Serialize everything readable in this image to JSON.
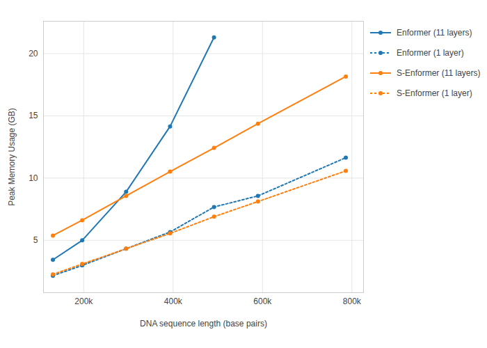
{
  "chart_data": {
    "type": "line",
    "x_label": "DNA sequence length (base pairs)",
    "y_label": "Peak Memory Usage (GB)",
    "x": [
      131072,
      196608,
      294912,
      393216,
      491520,
      589824,
      786432
    ],
    "series": [
      {
        "name": "Enformer (11 layers)",
        "color": "#1f77b4",
        "line_style": "solid",
        "marker": "circle",
        "values": [
          3.44,
          5.0,
          8.9,
          14.15,
          21.3,
          null,
          null
        ]
      },
      {
        "name": "Enformer (1 layer)",
        "color": "#1f77b4",
        "line_style": "dotted",
        "marker": "circle",
        "values": [
          2.16,
          2.99,
          4.33,
          5.67,
          7.68,
          8.57,
          11.64
        ]
      },
      {
        "name": "S-Enformer (11 layers)",
        "color": "#ff7f0e",
        "line_style": "solid",
        "marker": "circle",
        "values": [
          5.39,
          6.62,
          8.57,
          10.52,
          12.42,
          14.37,
          18.16
        ]
      },
      {
        "name": "S-Enformer (1 layer)",
        "color": "#ff7f0e",
        "line_style": "dotted",
        "marker": "circle",
        "values": [
          2.27,
          3.1,
          4.33,
          5.56,
          6.9,
          8.12,
          10.58
        ]
      }
    ],
    "xlim": [
      110000,
      826000
    ],
    "ylim": [
      0.8,
      22.6
    ],
    "xticks": [
      {
        "value": 200000,
        "label": "200k"
      },
      {
        "value": 400000,
        "label": "400k"
      },
      {
        "value": 600000,
        "label": "600k"
      },
      {
        "value": 800000,
        "label": "800k"
      }
    ],
    "yticks": [
      5,
      10,
      15,
      20
    ],
    "grid": true,
    "legend": "right"
  }
}
